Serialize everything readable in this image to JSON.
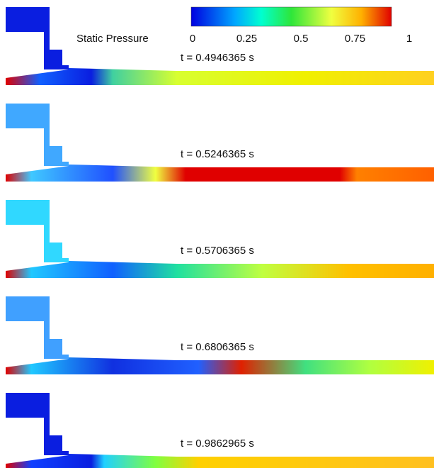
{
  "colorbar": {
    "label": "Static Pressure",
    "range": [
      0,
      1
    ],
    "ticks": [
      0,
      0.25,
      0.5,
      0.75,
      1
    ]
  },
  "panels": [
    {
      "time": "t = 0.4946365 s"
    },
    {
      "time": "t = 0.5246365 s"
    },
    {
      "time": "t = 0.5706365 s"
    },
    {
      "time": "t = 0.6806365 s"
    },
    {
      "time": "t = 0.9862965 s"
    }
  ]
}
